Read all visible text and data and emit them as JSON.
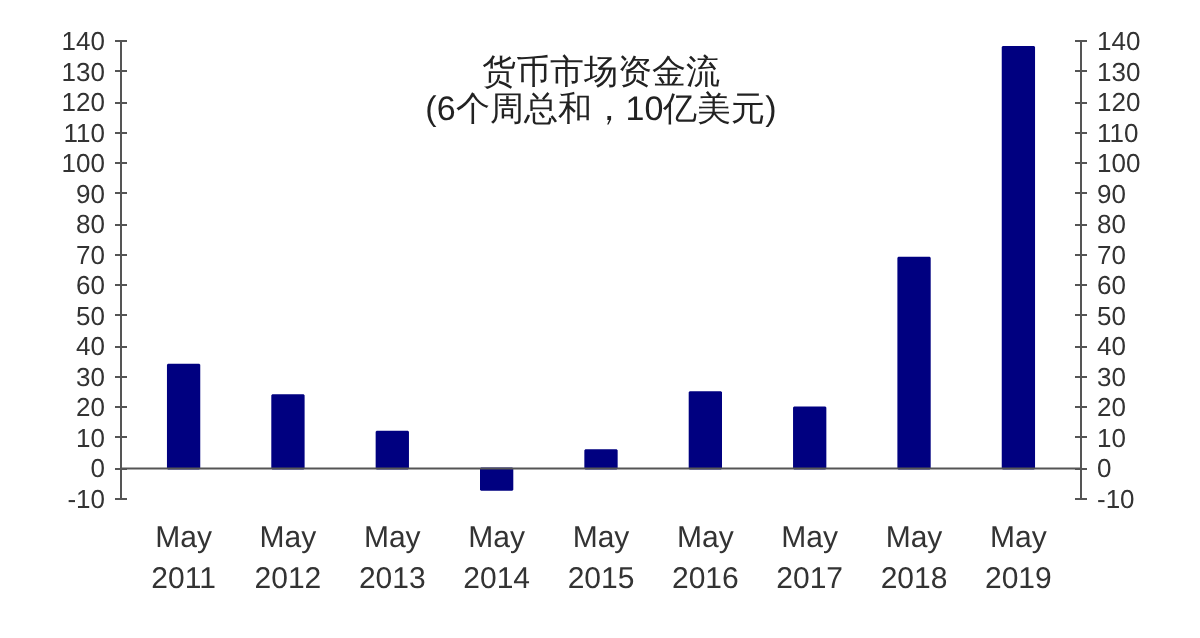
{
  "chart_data": {
    "type": "bar",
    "title": "货币市场资金流",
    "subtitle": "(6个周总和，10亿美元)",
    "categories": [
      "May\n2011",
      "May\n2012",
      "May\n2013",
      "May\n2014",
      "May\n2015",
      "May\n2016",
      "May\n2017",
      "May\n2018",
      "May\n2019"
    ],
    "values": [
      34,
      24,
      12,
      -7,
      6,
      25,
      20,
      69,
      138
    ],
    "color": "#000080",
    "ylim": [
      -10,
      140
    ],
    "yticks": [
      -10,
      0,
      10,
      20,
      30,
      40,
      50,
      60,
      70,
      80,
      90,
      100,
      110,
      120,
      130,
      140
    ],
    "y2lim": [
      -10,
      140
    ],
    "y2ticks": [
      -10,
      0,
      10,
      20,
      30,
      40,
      50,
      60,
      70,
      80,
      90,
      100,
      110,
      120,
      130,
      140
    ],
    "grid": false
  }
}
